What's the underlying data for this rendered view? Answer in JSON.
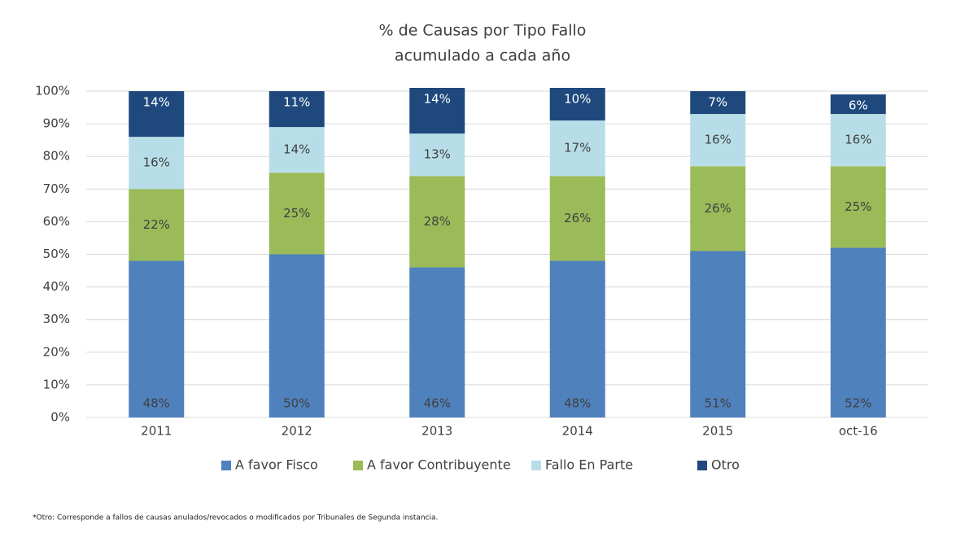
{
  "chart_data": {
    "type": "stacked_bar",
    "title": "% de Causas por Tipo Fallo",
    "subtitle": "acumulado a cada año",
    "note": "*Otro: Corresponde a fallos de causas anulados/revocados o modificados por Tribunales de Segunda instancia.",
    "categories": [
      "2011",
      "2012",
      "2013",
      "2014",
      "2015",
      "oct-16"
    ],
    "series": [
      {
        "name": "A favor Fisco",
        "color": "#4f81bd",
        "values": [
          48,
          50,
          46,
          48,
          51,
          52
        ],
        "value_labels": [
          "48%",
          "50%",
          "46%",
          "48%",
          "51%",
          "52%"
        ]
      },
      {
        "name": "A favor Contribuyente",
        "color": "#9bbb59",
        "values": [
          22,
          25,
          28,
          26,
          26,
          25
        ],
        "value_labels": [
          "22%",
          "25%",
          "28%",
          "26%",
          "26%",
          "25%"
        ]
      },
      {
        "name": "Fallo En Parte",
        "color": "#b7dee8",
        "values": [
          16,
          14,
          13,
          17,
          16,
          16
        ],
        "value_labels": [
          "16%",
          "14%",
          "13%",
          "17%",
          "16%",
          "16%"
        ]
      },
      {
        "name": "Otro",
        "color": "#1f497d",
        "values": [
          14,
          11,
          14,
          10,
          7,
          6
        ],
        "value_labels": [
          "14%",
          "11%",
          "14%",
          "10%",
          "7%",
          "6%"
        ]
      }
    ],
    "ylim": [
      0,
      100
    ],
    "yticks": [
      {
        "value": 0,
        "label": "0%"
      },
      {
        "value": 10,
        "label": "10%"
      },
      {
        "value": 20,
        "label": "20%"
      },
      {
        "value": 30,
        "label": "30%"
      },
      {
        "value": 40,
        "label": "40%"
      },
      {
        "value": 50,
        "label": "50%"
      },
      {
        "value": 60,
        "label": "60%"
      },
      {
        "value": 70,
        "label": "70%"
      },
      {
        "value": 80,
        "label": "80%"
      },
      {
        "value": 90,
        "label": "90%"
      },
      {
        "value": 100,
        "label": "100%"
      }
    ],
    "grid": true,
    "legend": "bottom"
  }
}
